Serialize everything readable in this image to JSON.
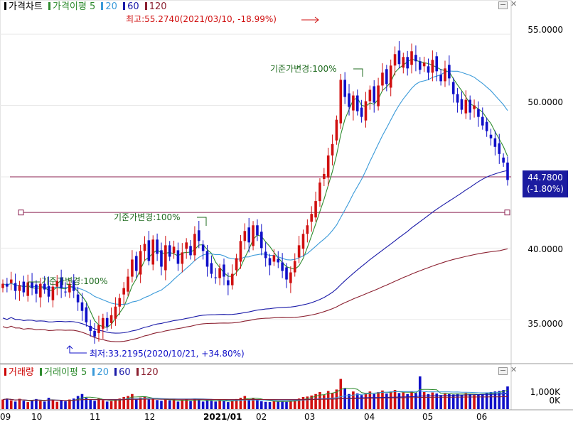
{
  "price_panel": {
    "legend": [
      {
        "label": "가격차트",
        "color": "#000000"
      },
      {
        "label": "가격이평 5",
        "color": "#2e8b2e"
      },
      {
        "label": "20",
        "color": "#3a9ad9"
      },
      {
        "label": "60",
        "color": "#1a1aa8"
      },
      {
        "label": "120",
        "color": "#8b2030"
      }
    ],
    "y_ticks": [
      "55.0000",
      "50.0000",
      "40.0000",
      "35.0000"
    ],
    "current_price": "44.7800",
    "current_change": "(-1.80%)",
    "high_label": "최고:55.2740(2021/03/10, -18.99%)",
    "low_label": "최저:33.2195(2020/10/21, +34.80%)",
    "ref_labels": [
      "기준가변경:100%",
      "기준가변경:100%",
      "기준가변경:100%"
    ],
    "minimize_icon": "minimize-icon",
    "close_icon": "close-icon"
  },
  "volume_panel": {
    "legend": [
      {
        "label": "거래량",
        "color": "#cc0000"
      },
      {
        "label": "거래이평 5",
        "color": "#2e8b2e"
      },
      {
        "label": "20",
        "color": "#3a9ad9"
      },
      {
        "label": "60",
        "color": "#1a1aa8"
      },
      {
        "label": "120",
        "color": "#8b2030"
      }
    ],
    "y_ticks": [
      "1,000K",
      "0K"
    ]
  },
  "x_axis": {
    "labels": [
      "09",
      "10",
      "11",
      "12",
      "2021/01",
      "02",
      "03",
      "04",
      "05",
      "06"
    ]
  },
  "chart_data": {
    "type": "candlestick",
    "y_range": [
      32.5,
      56.5
    ],
    "ma_periods": [
      5,
      20,
      60,
      120
    ],
    "series_colors": {
      "up": "#d01010",
      "down": "#1010c8",
      "ma5": "#2e8b2e",
      "ma20": "#3a9ad9",
      "ma60": "#1a1aa8",
      "ma120": "#8b2030"
    },
    "horizontal_lines": [
      45.0,
      42.5
    ],
    "closes": [
      37.5,
      37.3,
      37.8,
      37.0,
      37.4,
      36.9,
      37.6,
      37.2,
      36.8,
      37.5,
      37.1,
      36.6,
      37.3,
      37.7,
      37.2,
      36.9,
      37.5,
      37.0,
      36.2,
      35.6,
      34.8,
      34.2,
      33.8,
      34.6,
      35.1,
      34.5,
      35.3,
      35.9,
      36.5,
      37.2,
      38.0,
      39.2,
      38.4,
      39.8,
      40.3,
      39.1,
      40.6,
      39.6,
      38.7,
      40.2,
      39.4,
      40.1,
      38.9,
      39.7,
      40.4,
      39.5,
      41.0,
      40.5,
      39.8,
      38.7,
      38.2,
      37.9,
      38.6,
      38.0,
      37.4,
      38.2,
      39.3,
      40.5,
      41.2,
      40.4,
      41.6,
      40.9,
      40.0,
      39.3,
      38.8,
      39.5,
      39.0,
      38.4,
      37.8,
      38.3,
      39.1,
      40.2,
      41.0,
      41.6,
      42.4,
      43.3,
      44.6,
      45.2,
      46.5,
      47.3,
      49.0,
      51.8,
      50.6,
      49.9,
      50.7,
      49.6,
      49.2,
      50.3,
      51.1,
      50.2,
      51.4,
      52.3,
      51.5,
      52.8,
      53.6,
      52.9,
      53.4,
      52.6,
      53.8,
      53.1,
      52.5,
      53.0,
      52.3,
      53.2,
      52.4,
      51.7,
      52.6,
      51.9,
      50.8,
      50.2,
      49.7,
      50.4,
      49.5,
      50.0,
      49.2,
      48.6,
      48.2,
      47.7,
      47.1,
      46.6,
      46.0,
      44.78
    ],
    "volume_scale_max_k": 1300,
    "volumes_k": [
      380,
      420,
      350,
      300,
      410,
      330,
      280,
      360,
      400,
      320,
      300,
      450,
      380,
      290,
      340,
      310,
      380,
      420,
      520,
      600,
      450,
      380,
      330,
      420,
      360,
      300,
      320,
      380,
      420,
      480,
      520,
      600,
      400,
      460,
      500,
      380,
      440,
      360,
      330,
      400,
      350,
      380,
      300,
      340,
      390,
      320,
      420,
      360,
      300,
      350,
      330,
      300,
      360,
      320,
      280,
      340,
      400,
      450,
      520,
      380,
      440,
      360,
      310,
      290,
      280,
      330,
      300,
      310,
      290,
      330,
      360,
      420,
      480,
      500,
      540,
      600,
      680,
      560,
      720,
      640,
      780,
      1200,
      820,
      600,
      700,
      620,
      560,
      640,
      700,
      600,
      680,
      740,
      620,
      700,
      760,
      640,
      660,
      600,
      700,
      640,
      1300,
      680,
      600,
      660,
      620,
      560,
      640,
      600,
      580,
      620,
      560,
      640,
      600,
      560,
      580,
      600,
      640,
      680,
      700,
      720,
      760,
      900
    ]
  }
}
